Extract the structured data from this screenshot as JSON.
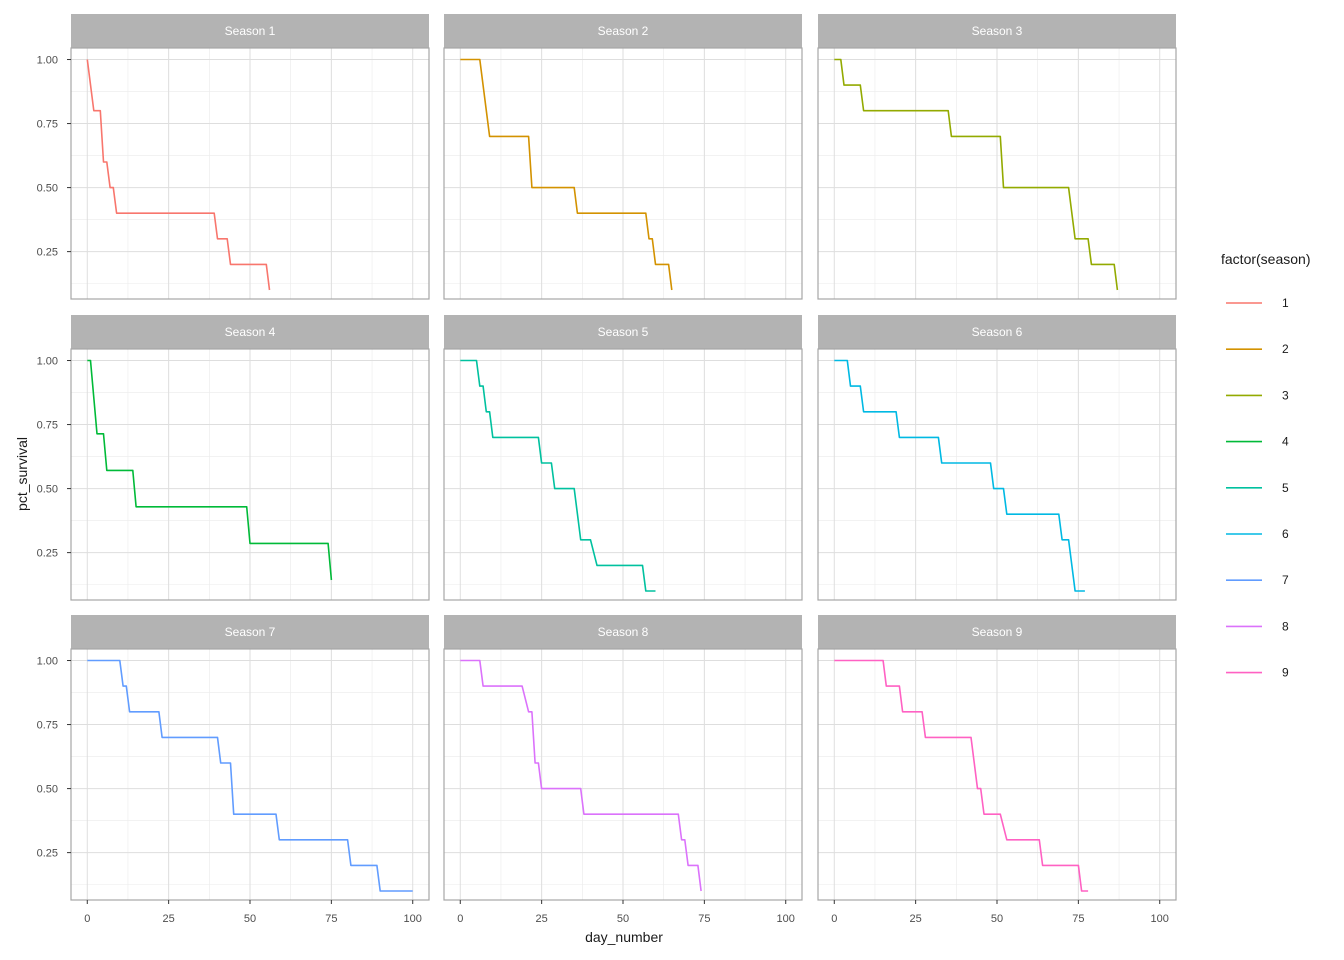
{
  "chart_data": {
    "type": "line",
    "xlabel": "day_number",
    "ylabel": "pct_survival",
    "xlim": [
      -5,
      105
    ],
    "ylim": [
      0.065,
      1.045
    ],
    "x_ticks": [
      0,
      25,
      50,
      75,
      100
    ],
    "y_ticks": [
      0.25,
      0.5,
      0.75,
      1.0
    ],
    "y_tick_labels": [
      "0.25",
      "0.50",
      "0.75",
      "1.00"
    ],
    "grid": true,
    "legend": {
      "title": "factor(season)",
      "placement": "right",
      "entries": [
        "1",
        "2",
        "3",
        "4",
        "5",
        "6",
        "7",
        "8",
        "9"
      ]
    },
    "panels": [
      {
        "strip": "Season 1",
        "color": "#F8766D",
        "points": [
          [
            0,
            1.0
          ],
          [
            2,
            0.8
          ],
          [
            4,
            0.8
          ],
          [
            5,
            0.6
          ],
          [
            6,
            0.6
          ],
          [
            7,
            0.5
          ],
          [
            8,
            0.5
          ],
          [
            9,
            0.4
          ],
          [
            39,
            0.4
          ],
          [
            40,
            0.3
          ],
          [
            43,
            0.3
          ],
          [
            44,
            0.2
          ],
          [
            55,
            0.2
          ],
          [
            56,
            0.1
          ]
        ]
      },
      {
        "strip": "Season 2",
        "color": "#D39200",
        "points": [
          [
            0,
            1.0
          ],
          [
            6,
            1.0
          ],
          [
            9,
            0.7
          ],
          [
            21,
            0.7
          ],
          [
            22,
            0.5
          ],
          [
            35,
            0.5
          ],
          [
            36,
            0.4
          ],
          [
            57,
            0.4
          ],
          [
            58,
            0.3
          ],
          [
            59,
            0.3
          ],
          [
            60,
            0.2
          ],
          [
            64,
            0.2
          ],
          [
            65,
            0.1
          ]
        ]
      },
      {
        "strip": "Season 3",
        "color": "#93AA00",
        "points": [
          [
            0,
            1.0
          ],
          [
            2,
            1.0
          ],
          [
            3,
            0.9
          ],
          [
            8,
            0.9
          ],
          [
            9,
            0.8
          ],
          [
            35,
            0.8
          ],
          [
            36,
            0.7
          ],
          [
            51,
            0.7
          ],
          [
            52,
            0.5
          ],
          [
            72,
            0.5
          ],
          [
            74,
            0.3
          ],
          [
            78,
            0.3
          ],
          [
            79,
            0.2
          ],
          [
            86,
            0.2
          ],
          [
            87,
            0.1
          ]
        ]
      },
      {
        "strip": "Season 4",
        "color": "#00BA38",
        "points": [
          [
            0,
            1.0
          ],
          [
            1,
            1.0
          ],
          [
            3,
            0.714
          ],
          [
            5,
            0.714
          ],
          [
            6,
            0.571
          ],
          [
            14,
            0.571
          ],
          [
            15,
            0.429
          ],
          [
            49,
            0.429
          ],
          [
            50,
            0.286
          ],
          [
            74,
            0.286
          ],
          [
            75,
            0.143
          ]
        ]
      },
      {
        "strip": "Season 5",
        "color": "#00C19F",
        "points": [
          [
            0,
            1.0
          ],
          [
            5,
            1.0
          ],
          [
            6,
            0.9
          ],
          [
            7,
            0.9
          ],
          [
            8,
            0.8
          ],
          [
            9,
            0.8
          ],
          [
            10,
            0.7
          ],
          [
            24,
            0.7
          ],
          [
            25,
            0.6
          ],
          [
            28,
            0.6
          ],
          [
            29,
            0.5
          ],
          [
            35,
            0.5
          ],
          [
            37,
            0.3
          ],
          [
            40,
            0.3
          ],
          [
            42,
            0.2
          ],
          [
            56,
            0.2
          ],
          [
            57,
            0.1
          ],
          [
            60,
            0.1
          ]
        ]
      },
      {
        "strip": "Season 6",
        "color": "#00B9E3",
        "points": [
          [
            0,
            1.0
          ],
          [
            4,
            1.0
          ],
          [
            5,
            0.9
          ],
          [
            8,
            0.9
          ],
          [
            9,
            0.8
          ],
          [
            19,
            0.8
          ],
          [
            20,
            0.7
          ],
          [
            32,
            0.7
          ],
          [
            33,
            0.6
          ],
          [
            48,
            0.6
          ],
          [
            49,
            0.5
          ],
          [
            52,
            0.5
          ],
          [
            53,
            0.4
          ],
          [
            69,
            0.4
          ],
          [
            70,
            0.3
          ],
          [
            72,
            0.3
          ],
          [
            74,
            0.1
          ],
          [
            77,
            0.1
          ]
        ]
      },
      {
        "strip": "Season 7",
        "color": "#619CFF",
        "points": [
          [
            0,
            1.0
          ],
          [
            10,
            1.0
          ],
          [
            11,
            0.9
          ],
          [
            12,
            0.9
          ],
          [
            13,
            0.8
          ],
          [
            22,
            0.8
          ],
          [
            23,
            0.7
          ],
          [
            40,
            0.7
          ],
          [
            41,
            0.6
          ],
          [
            44,
            0.6
          ],
          [
            45,
            0.4
          ],
          [
            58,
            0.4
          ],
          [
            59,
            0.3
          ],
          [
            80,
            0.3
          ],
          [
            81,
            0.2
          ],
          [
            89,
            0.2
          ],
          [
            90,
            0.1
          ],
          [
            100,
            0.1
          ]
        ]
      },
      {
        "strip": "Season 8",
        "color": "#DB72FB",
        "points": [
          [
            0,
            1.0
          ],
          [
            6,
            1.0
          ],
          [
            7,
            0.9
          ],
          [
            19,
            0.9
          ],
          [
            21,
            0.8
          ],
          [
            22,
            0.8
          ],
          [
            23,
            0.6
          ],
          [
            24,
            0.6
          ],
          [
            25,
            0.5
          ],
          [
            37,
            0.5
          ],
          [
            38,
            0.4
          ],
          [
            67,
            0.4
          ],
          [
            68,
            0.3
          ],
          [
            69,
            0.3
          ],
          [
            70,
            0.2
          ],
          [
            73,
            0.2
          ],
          [
            74,
            0.1
          ]
        ]
      },
      {
        "strip": "Season 9",
        "color": "#FF61C3",
        "points": [
          [
            0,
            1.0
          ],
          [
            15,
            1.0
          ],
          [
            16,
            0.9
          ],
          [
            20,
            0.9
          ],
          [
            21,
            0.8
          ],
          [
            27,
            0.8
          ],
          [
            28,
            0.7
          ],
          [
            42,
            0.7
          ],
          [
            44,
            0.5
          ],
          [
            45,
            0.5
          ],
          [
            46,
            0.4
          ],
          [
            51,
            0.4
          ],
          [
            53,
            0.3
          ],
          [
            63,
            0.3
          ],
          [
            64,
            0.2
          ],
          [
            75,
            0.2
          ],
          [
            76,
            0.1
          ],
          [
            78,
            0.1
          ]
        ]
      }
    ]
  }
}
